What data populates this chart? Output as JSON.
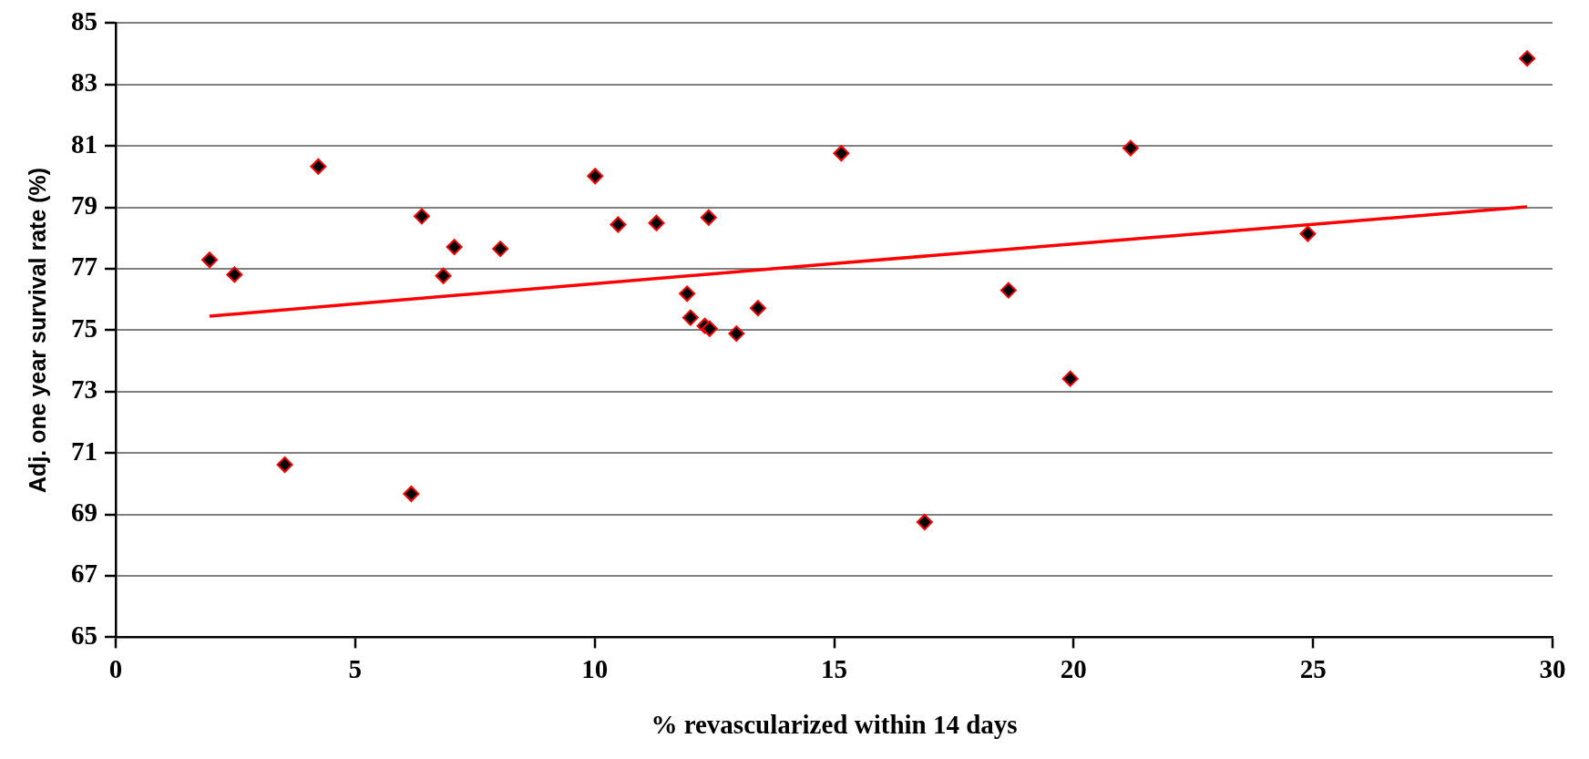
{
  "chart_data": {
    "type": "scatter",
    "xlabel": "% revascularized within 14 days",
    "ylabel": "Adj. one year survival rate (%)",
    "xlim": [
      0,
      30
    ],
    "ylim": [
      65,
      85
    ],
    "xticks": [
      0,
      5,
      10,
      15,
      20,
      25,
      30
    ],
    "yticks": [
      65,
      67,
      69,
      71,
      73,
      75,
      77,
      79,
      81,
      83,
      85
    ],
    "grid": "y",
    "marker": "diamond",
    "series": [
      {
        "color": "#000000",
        "x": [
          1.96,
          2.48,
          3.53,
          4.23,
          6.17,
          6.39,
          6.84,
          7.07,
          8.03,
          10.01,
          10.49,
          11.29,
          12.38,
          11.93,
          12.0,
          12.3,
          12.4,
          12.96,
          13.41,
          15.15,
          16.89,
          18.64,
          19.93,
          21.19,
          24.89,
          29.47
        ],
        "values": [
          77.29,
          76.81,
          70.62,
          80.33,
          69.67,
          78.71,
          76.77,
          77.71,
          77.65,
          80.02,
          78.44,
          78.49,
          78.67,
          76.19,
          75.41,
          75.14,
          75.05,
          74.89,
          75.72,
          80.76,
          68.75,
          76.3,
          73.42,
          80.93,
          78.14,
          83.85
        ]
      },
      {
        "type": "line",
        "color": "#ff0000",
        "marker": "none",
        "x": [
          1.96,
          15,
          29.47
        ],
        "values": [
          75.46,
          77.17,
          79.02
        ]
      }
    ]
  }
}
